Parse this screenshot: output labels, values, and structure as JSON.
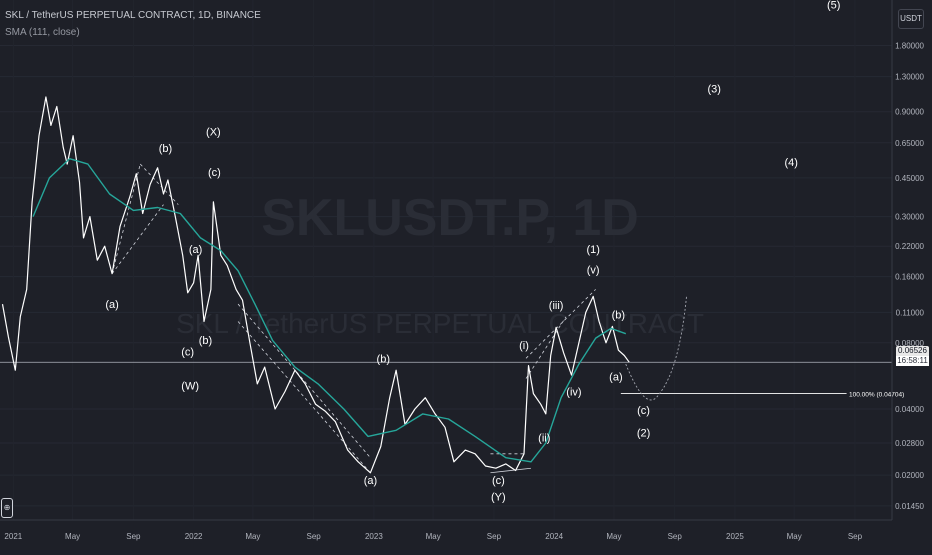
{
  "header": {
    "symbol_line": "SKL / TetherUS PERPETUAL CONTRACT, 1D, BINANCE",
    "indicator_line": "SMA (111, close)"
  },
  "watermark": {
    "ticker": "SKLUSDT.P, 1D",
    "name": "SKL / TetherUS PERPETUAL CONTRACT"
  },
  "axis": {
    "currency_label": "USDT",
    "y_ticks": [
      "1.80000",
      "1.30000",
      "0.90000",
      "0.65000",
      "0.45000",
      "0.30000",
      "0.22000",
      "0.16000",
      "0.11000",
      "0.08000",
      "0.04000",
      "0.02800",
      "0.02000",
      "0.01450"
    ],
    "x_ticks": [
      "2021",
      "May",
      "Sep",
      "2022",
      "May",
      "Sep",
      "2023",
      "May",
      "Sep",
      "2024",
      "May",
      "Sep",
      "2025",
      "May",
      "Sep"
    ]
  },
  "last_price": {
    "value": "0.06526",
    "countdown": "16:58:11"
  },
  "fib_level": {
    "label": "100.00% (0.04704)",
    "price": 0.04704
  },
  "wave_labels": [
    {
      "text": "(a)",
      "date": "2021-07-20",
      "price": 0.115
    },
    {
      "text": "(b)",
      "date": "2021-11-05",
      "price": 0.59
    },
    {
      "text": "(X)",
      "date": "2022-02-10",
      "price": 0.7
    },
    {
      "text": "(c)",
      "date": "2022-02-12",
      "price": 0.46
    },
    {
      "text": "(a)",
      "date": "2022-01-05",
      "price": 0.205
    },
    {
      "text": "(b)",
      "date": "2022-01-25",
      "price": 0.079
    },
    {
      "text": "(c)",
      "date": "2021-12-20",
      "price": 0.07
    },
    {
      "text": "(W)",
      "date": "2021-12-25",
      "price": 0.049
    },
    {
      "text": "(b)",
      "date": "2023-01-20",
      "price": 0.065
    },
    {
      "text": "(a)",
      "date": "2022-12-25",
      "price": 0.0182
    },
    {
      "text": "(c)",
      "date": "2023-09-10",
      "price": 0.0182
    },
    {
      "text": "(Y)",
      "date": "2023-09-10",
      "price": 0.0153
    },
    {
      "text": "(i)",
      "date": "2023-11-01",
      "price": 0.075
    },
    {
      "text": "(ii)",
      "date": "2023-12-12",
      "price": 0.0285
    },
    {
      "text": "(iii)",
      "date": "2024-01-05",
      "price": 0.114
    },
    {
      "text": "(iv)",
      "date": "2024-02-10",
      "price": 0.046
    },
    {
      "text": "(v)",
      "date": "2024-03-20",
      "price": 0.165
    },
    {
      "text": "(1)",
      "date": "2024-03-20",
      "price": 0.205
    },
    {
      "text": "(b)",
      "date": "2024-05-10",
      "price": 0.103
    },
    {
      "text": "(a)",
      "date": "2024-05-05",
      "price": 0.054
    },
    {
      "text": "(c)",
      "date": "2024-06-30",
      "price": 0.038
    },
    {
      "text": "(2)",
      "date": "2024-06-30",
      "price": 0.03
    },
    {
      "text": "(3)",
      "date": "2024-11-20",
      "price": 1.1
    },
    {
      "text": "(4)",
      "date": "2025-04-25",
      "price": 0.51
    },
    {
      "text": "(5)",
      "date": "2025-07-20",
      "price": 2.65
    }
  ],
  "chart_data": {
    "type": "line",
    "title": "SKL / TetherUS PERPETUAL CONTRACT, 1D, BINANCE",
    "y_scale": "log",
    "ylim": [
      0.0125,
      2.9
    ],
    "xlim": [
      "2020-12-05",
      "2025-11-15"
    ],
    "grid": true,
    "series": [
      {
        "name": "SKL / TetherUS PERPETUAL CONTRACT",
        "color": "#ffffff",
        "points": [
          [
            "2020-12-10",
            0.12
          ],
          [
            "2020-12-22",
            0.085
          ],
          [
            "2021-01-05",
            0.06
          ],
          [
            "2021-01-15",
            0.105
          ],
          [
            "2021-01-28",
            0.14
          ],
          [
            "2021-02-08",
            0.35
          ],
          [
            "2021-02-22",
            0.7
          ],
          [
            "2021-03-08",
            1.05
          ],
          [
            "2021-03-18",
            0.78
          ],
          [
            "2021-03-30",
            0.95
          ],
          [
            "2021-04-12",
            0.62
          ],
          [
            "2021-04-20",
            0.52
          ],
          [
            "2021-05-02",
            0.7
          ],
          [
            "2021-05-15",
            0.43
          ],
          [
            "2021-05-23",
            0.24
          ],
          [
            "2021-06-05",
            0.3
          ],
          [
            "2021-06-20",
            0.19
          ],
          [
            "2021-07-05",
            0.22
          ],
          [
            "2021-07-20",
            0.165
          ],
          [
            "2021-08-05",
            0.27
          ],
          [
            "2021-08-25",
            0.37
          ],
          [
            "2021-09-07",
            0.47
          ],
          [
            "2021-09-20",
            0.31
          ],
          [
            "2021-10-05",
            0.42
          ],
          [
            "2021-10-20",
            0.5
          ],
          [
            "2021-11-01",
            0.38
          ],
          [
            "2021-11-10",
            0.44
          ],
          [
            "2021-11-25",
            0.3
          ],
          [
            "2021-12-10",
            0.2
          ],
          [
            "2021-12-20",
            0.135
          ],
          [
            "2022-01-01",
            0.15
          ],
          [
            "2022-01-10",
            0.2
          ],
          [
            "2022-01-22",
            0.1
          ],
          [
            "2022-02-05",
            0.14
          ],
          [
            "2022-02-10",
            0.35
          ],
          [
            "2022-02-25",
            0.2
          ],
          [
            "2022-03-10",
            0.18
          ],
          [
            "2022-03-28",
            0.14
          ],
          [
            "2022-04-10",
            0.125
          ],
          [
            "2022-04-25",
            0.08
          ],
          [
            "2022-05-10",
            0.052
          ],
          [
            "2022-05-25",
            0.062
          ],
          [
            "2022-06-15",
            0.04
          ],
          [
            "2022-07-05",
            0.048
          ],
          [
            "2022-07-25",
            0.06
          ],
          [
            "2022-08-15",
            0.052
          ],
          [
            "2022-09-05",
            0.042
          ],
          [
            "2022-09-25",
            0.039
          ],
          [
            "2022-10-15",
            0.035
          ],
          [
            "2022-11-09",
            0.026
          ],
          [
            "2022-11-30",
            0.023
          ],
          [
            "2022-12-25",
            0.0205
          ],
          [
            "2023-01-15",
            0.027
          ],
          [
            "2023-02-02",
            0.045
          ],
          [
            "2023-02-15",
            0.06
          ],
          [
            "2023-03-05",
            0.034
          ],
          [
            "2023-03-25",
            0.04
          ],
          [
            "2023-04-15",
            0.045
          ],
          [
            "2023-05-05",
            0.038
          ],
          [
            "2023-05-25",
            0.033
          ],
          [
            "2023-06-12",
            0.023
          ],
          [
            "2023-07-05",
            0.026
          ],
          [
            "2023-07-25",
            0.025
          ],
          [
            "2023-08-15",
            0.022
          ],
          [
            "2023-09-05",
            0.0215
          ],
          [
            "2023-09-25",
            0.0225
          ],
          [
            "2023-10-15",
            0.021
          ],
          [
            "2023-11-01",
            0.025
          ],
          [
            "2023-11-10",
            0.063
          ],
          [
            "2023-11-20",
            0.047
          ],
          [
            "2023-12-05",
            0.042
          ],
          [
            "2023-12-15",
            0.038
          ],
          [
            "2023-12-25",
            0.07
          ],
          [
            "2024-01-05",
            0.094
          ],
          [
            "2024-01-20",
            0.072
          ],
          [
            "2024-02-05",
            0.057
          ],
          [
            "2024-02-20",
            0.08
          ],
          [
            "2024-03-05",
            0.11
          ],
          [
            "2024-03-20",
            0.13
          ],
          [
            "2024-04-01",
            0.1
          ],
          [
            "2024-04-15",
            0.08
          ],
          [
            "2024-04-28",
            0.095
          ],
          [
            "2024-05-10",
            0.074
          ],
          [
            "2024-05-22",
            0.07
          ],
          [
            "2024-06-01",
            0.06526
          ]
        ]
      },
      {
        "name": "SMA (111, close)",
        "color": "#26a69a",
        "points": [
          [
            "2021-02-10",
            0.3
          ],
          [
            "2021-03-15",
            0.45
          ],
          [
            "2021-04-25",
            0.55
          ],
          [
            "2021-06-01",
            0.52
          ],
          [
            "2021-07-15",
            0.38
          ],
          [
            "2021-09-01",
            0.32
          ],
          [
            "2021-10-20",
            0.33
          ],
          [
            "2021-12-05",
            0.31
          ],
          [
            "2022-01-15",
            0.24
          ],
          [
            "2022-02-25",
            0.21
          ],
          [
            "2022-04-01",
            0.17
          ],
          [
            "2022-05-05",
            0.12
          ],
          [
            "2022-06-10",
            0.082
          ],
          [
            "2022-07-25",
            0.062
          ],
          [
            "2022-09-10",
            0.052
          ],
          [
            "2022-11-01",
            0.04
          ],
          [
            "2022-12-20",
            0.03
          ],
          [
            "2023-02-15",
            0.032
          ],
          [
            "2023-04-10",
            0.038
          ],
          [
            "2023-06-01",
            0.036
          ],
          [
            "2023-07-25",
            0.03
          ],
          [
            "2023-09-25",
            0.024
          ],
          [
            "2023-11-15",
            0.023
          ],
          [
            "2023-12-15",
            0.028
          ],
          [
            "2024-01-15",
            0.045
          ],
          [
            "2024-02-20",
            0.064
          ],
          [
            "2024-03-25",
            0.084
          ],
          [
            "2024-04-25",
            0.093
          ],
          [
            "2024-05-25",
            0.088
          ]
        ]
      }
    ]
  }
}
